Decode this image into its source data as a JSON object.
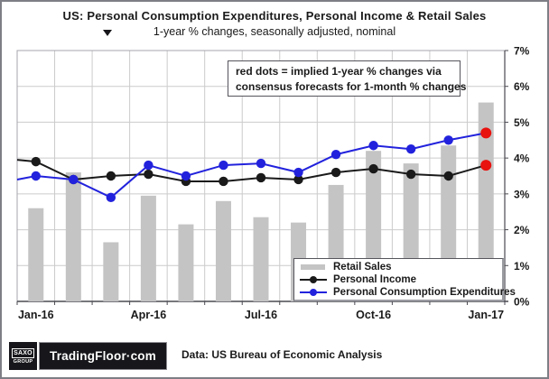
{
  "title": "US: Personal Consumption Expenditures, Personal Income & Retail Sales",
  "subtitle": "1-year % changes, seasonally adjusted, nominal",
  "annotation": {
    "line1": "red dots = implied 1-year % changes via",
    "line2": "consensus forecasts for 1-month % changes"
  },
  "legend": {
    "items": [
      {
        "label": "Retail Sales",
        "type": "bar",
        "color": "#c4c4c4"
      },
      {
        "label": "Personal Income",
        "type": "line",
        "color": "#1a1a1a"
      },
      {
        "label": "Personal Consumption Expenditures",
        "type": "line",
        "color": "#2222dd"
      }
    ]
  },
  "footer": {
    "source": "Data: US Bureau of Economic Analysis",
    "logo": {
      "saxo_top": "SAXO",
      "saxo_bottom": "GROUP",
      "brand": "TradingFloor·com"
    }
  },
  "colors": {
    "bar": "#c4c4c4",
    "personal_income": "#1a1a1a",
    "pce_blue": "#2222dd",
    "forecast_red": "#e8120e",
    "gridline": "#cbcbcb",
    "frame_light": "#a5a5ad",
    "frame_dark": "#4a4a52",
    "text": "#1a1a1a"
  },
  "chart_data": {
    "type": "bar",
    "note": "gray bars = Retail Sales; black line = Personal Income; blue line = Personal Consumption Expenditures; red dots at Jan-17 = consensus forecast implied values",
    "categories": [
      "Jan-16",
      "Feb-16",
      "Mar-16",
      "Apr-16",
      "May-16",
      "Jun-16",
      "Jul-16",
      "Aug-16",
      "Sep-16",
      "Oct-16",
      "Nov-16",
      "Dec-16",
      "Jan-17"
    ],
    "x_ticks": [
      {
        "index": 0,
        "label": "Jan-16"
      },
      {
        "index": 3,
        "label": "Apr-16"
      },
      {
        "index": 6,
        "label": "Jul-16"
      },
      {
        "index": 9,
        "label": "Oct-16"
      },
      {
        "index": 12,
        "label": "Jan-17"
      }
    ],
    "ylim": [
      0,
      7
    ],
    "y_ticks": [
      "0%",
      "1%",
      "2%",
      "3%",
      "4%",
      "5%",
      "6%",
      "7%"
    ],
    "grid": true,
    "legend_position": "bottom-right-inside",
    "series": [
      {
        "name": "Retail Sales",
        "type": "bar",
        "color": "#c4c4c4",
        "values": [
          2.6,
          3.6,
          1.65,
          2.95,
          2.15,
          2.8,
          2.35,
          2.2,
          3.25,
          4.2,
          3.85,
          4.35,
          5.55
        ]
      },
      {
        "name": "Personal Income",
        "type": "line",
        "color": "#1a1a1a",
        "edge_value": 3.95,
        "values": [
          3.9,
          3.4,
          3.5,
          3.55,
          3.35,
          3.35,
          3.45,
          3.4,
          3.6,
          3.7,
          3.55,
          3.5
        ],
        "forecast_value": 3.8
      },
      {
        "name": "Personal Consumption Expenditures",
        "type": "line",
        "color": "#2222dd",
        "edge_value": 3.4,
        "values": [
          3.5,
          3.4,
          2.9,
          3.8,
          3.5,
          3.8,
          3.85,
          3.6,
          4.1,
          4.35,
          4.25,
          4.5
        ],
        "forecast_value": 4.7
      }
    ],
    "forecast_color": "#e8120e"
  }
}
